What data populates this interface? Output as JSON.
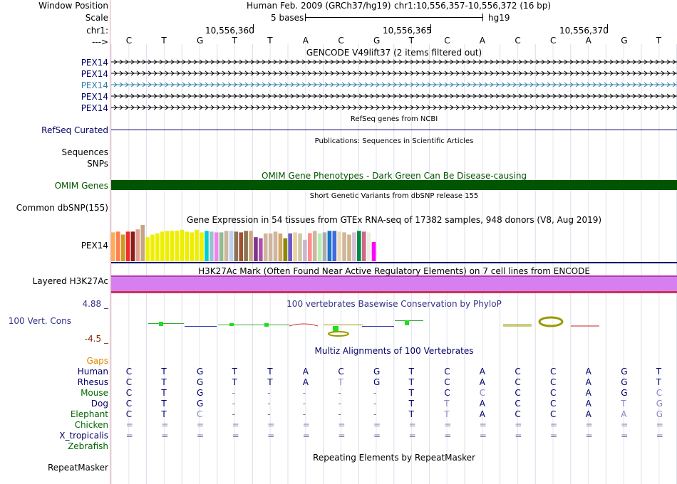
{
  "header": {
    "window_position_label": "Window Position",
    "scale_label": "Scale",
    "chrom_label": "chr1:",
    "arrow_label": "--->",
    "assembly_title": "Human Feb. 2009 (GRCh37/hg19)",
    "range": "chr1:10,556,357-10,556,372 (16 bp)",
    "scale_text": "5 bases",
    "scale_db": "hg19",
    "ticks": [
      "10,556,360",
      "10,556,365",
      "10,556,370"
    ]
  },
  "sequence": [
    "C",
    "T",
    "G",
    "T",
    "T",
    "A",
    "C",
    "G",
    "T",
    "C",
    "A",
    "C",
    "C",
    "A",
    "G",
    "T"
  ],
  "gencode": {
    "title": "GENCODE V49lift37 (2 items filtered out)",
    "items": [
      {
        "label": "PEX14",
        "color": "#000000"
      },
      {
        "label": "PEX14",
        "color": "#000000"
      },
      {
        "label": "PEX14",
        "color": "#2e7fa8"
      },
      {
        "label": "PEX14",
        "color": "#000000"
      },
      {
        "label": "PEX14",
        "color": "#000000"
      }
    ]
  },
  "refseq": {
    "title": "RefSeq genes from NCBI",
    "label": "RefSeq Curated"
  },
  "publications": {
    "title": "Publications: Sequences in Scientific Articles",
    "label": "Sequences"
  },
  "snps_label": "SNPs",
  "omim": {
    "title": "OMIM Gene Phenotypes - Dark Green Can Be Disease-causing",
    "label": "OMIM Genes",
    "color": "#005500"
  },
  "dbsnp": {
    "title": "Short Genetic Variants from dbSNP release 155",
    "label": "Common dbSNP(155)"
  },
  "gtex": {
    "title": "Gene Expression in 54 tissues from GTEx RNA-seq of 17382 samples, 948 donors (V8, Aug 2019)",
    "label": "PEX14",
    "bars": [
      {
        "v": 0.78,
        "c": "#ffaa55"
      },
      {
        "v": 0.8,
        "c": "#ff7f50"
      },
      {
        "v": 0.72,
        "c": "#cd9b1d"
      },
      {
        "v": 0.8,
        "c": "#ee2c2c"
      },
      {
        "v": 0.8,
        "c": "#8b1a1a"
      },
      {
        "v": 0.86,
        "c": "#e0a090"
      },
      {
        "v": 0.98,
        "c": "#c4a484"
      },
      {
        "v": 0.65,
        "c": "#eeee00"
      },
      {
        "v": 0.72,
        "c": "#eeee00"
      },
      {
        "v": 0.75,
        "c": "#eeee00"
      },
      {
        "v": 0.8,
        "c": "#eeee00"
      },
      {
        "v": 0.82,
        "c": "#eeee00"
      },
      {
        "v": 0.82,
        "c": "#eeee00"
      },
      {
        "v": 0.82,
        "c": "#eeee00"
      },
      {
        "v": 0.85,
        "c": "#eeee00"
      },
      {
        "v": 0.8,
        "c": "#eeee00"
      },
      {
        "v": 0.78,
        "c": "#eeee00"
      },
      {
        "v": 0.85,
        "c": "#eeee00"
      },
      {
        "v": 0.78,
        "c": "#eeee00"
      },
      {
        "v": 0.82,
        "c": "#00cdcd"
      },
      {
        "v": 0.8,
        "c": "#9ac0cd"
      },
      {
        "v": 0.78,
        "c": "#ee82ee"
      },
      {
        "v": 0.78,
        "c": "#8fbc8f"
      },
      {
        "v": 0.82,
        "c": "#cdb79e"
      },
      {
        "v": 0.82,
        "c": "#bcd2ee"
      },
      {
        "v": 0.8,
        "c": "#8b7355"
      },
      {
        "v": 0.78,
        "c": "#a0522d"
      },
      {
        "v": 0.82,
        "c": "#8b7355"
      },
      {
        "v": 0.82,
        "c": "#cdaa7d"
      },
      {
        "v": 0.65,
        "c": "#7a378b"
      },
      {
        "v": 0.62,
        "c": "#b04fb0"
      },
      {
        "v": 0.75,
        "c": "#cdb79e"
      },
      {
        "v": 0.75,
        "c": "#cdb79e"
      },
      {
        "v": 0.8,
        "c": "#cdb79e"
      },
      {
        "v": 0.75,
        "c": "#d4a76a"
      },
      {
        "v": 0.62,
        "c": "#8b8b00"
      },
      {
        "v": 0.75,
        "c": "#6a5acd"
      },
      {
        "v": 0.78,
        "c": "#eecfa1"
      },
      {
        "v": 0.75,
        "c": "#cdc9a5"
      },
      {
        "v": 0.58,
        "c": "#cdb5cd"
      },
      {
        "v": 0.76,
        "c": "#ff8c8c"
      },
      {
        "v": 0.82,
        "c": "#cdb79e"
      },
      {
        "v": 0.75,
        "c": "#b4eeb4"
      },
      {
        "v": 0.78,
        "c": "#ababab"
      },
      {
        "v": 0.82,
        "c": "#1874cd"
      },
      {
        "v": 0.82,
        "c": "#4169e1"
      },
      {
        "v": 0.8,
        "c": "#eed8ae"
      },
      {
        "v": 0.78,
        "c": "#cdb79e"
      },
      {
        "v": 0.72,
        "c": "#d2b48c"
      },
      {
        "v": 0.78,
        "c": "#d8bfd8"
      },
      {
        "v": 0.82,
        "c": "#008b45"
      },
      {
        "v": 0.8,
        "c": "#cd6889"
      },
      {
        "v": 0.78,
        "c": "#eeeee0"
      },
      {
        "v": 0.52,
        "c": "#ff00ff"
      }
    ]
  },
  "h3k27ac": {
    "title": "H3K27Ac Mark (Often Found Near Active Regulatory Elements) on 7 cell lines from ENCODE",
    "label": "Layered H3K27Ac",
    "color": "#d67ff0"
  },
  "phylop": {
    "title": "100 vertebrates Basewise Conservation by PhyloP",
    "label": "100 Vert. Cons",
    "max": "4.88 _",
    "min": "-4.5 _"
  },
  "multiz": {
    "title": "Multiz Alignments of 100 Vertebrates",
    "gaps_label": "Gaps",
    "species": [
      {
        "name": "Human",
        "color": "#000066",
        "seq": [
          "C",
          "T",
          "G",
          "T",
          "T",
          "A",
          "C",
          "G",
          "T",
          "C",
          "A",
          "C",
          "C",
          "A",
          "G",
          "T"
        ]
      },
      {
        "name": "Rhesus",
        "color": "#000066",
        "seq": [
          "C",
          "T",
          "G",
          "T",
          "T",
          "A",
          "T",
          "G",
          "T",
          "C",
          "A",
          "C",
          "C",
          "A",
          "G",
          "T"
        ]
      },
      {
        "name": "Mouse",
        "color": "#006600",
        "seq": [
          "C",
          "T",
          "G",
          "-",
          "-",
          "-",
          "-",
          "-",
          "T",
          "C",
          "C",
          "C",
          "C",
          "A",
          "G",
          "C"
        ]
      },
      {
        "name": "Dog",
        "color": "#000066",
        "seq": [
          "C",
          "T",
          "G",
          "-",
          "-",
          "-",
          "-",
          "-",
          "T",
          "T",
          "A",
          "C",
          "C",
          "A",
          "T",
          "G"
        ]
      },
      {
        "name": "Elephant",
        "color": "#006600",
        "seq": [
          "C",
          "T",
          "C",
          "-",
          "-",
          "-",
          "-",
          "-",
          "T",
          "T",
          "A",
          "C",
          "C",
          "A",
          "A",
          "G"
        ]
      },
      {
        "name": "Chicken",
        "color": "#006600",
        "seq": [
          "=",
          "=",
          "=",
          "=",
          "=",
          "=",
          "=",
          "=",
          "=",
          "=",
          "=",
          "=",
          "=",
          "=",
          "=",
          "="
        ]
      },
      {
        "name": "X_tropicalis",
        "color": "#000066",
        "seq": [
          "=",
          "=",
          "=",
          "=",
          "=",
          "=",
          "=",
          "=",
          "=",
          "=",
          "=",
          "=",
          "=",
          "=",
          "=",
          "="
        ]
      },
      {
        "name": "Zebrafish",
        "color": "#006600",
        "seq": []
      }
    ]
  },
  "repeatmasker": {
    "title": "Repeating Elements by RepeatMasker",
    "label": "RepeatMasker"
  }
}
